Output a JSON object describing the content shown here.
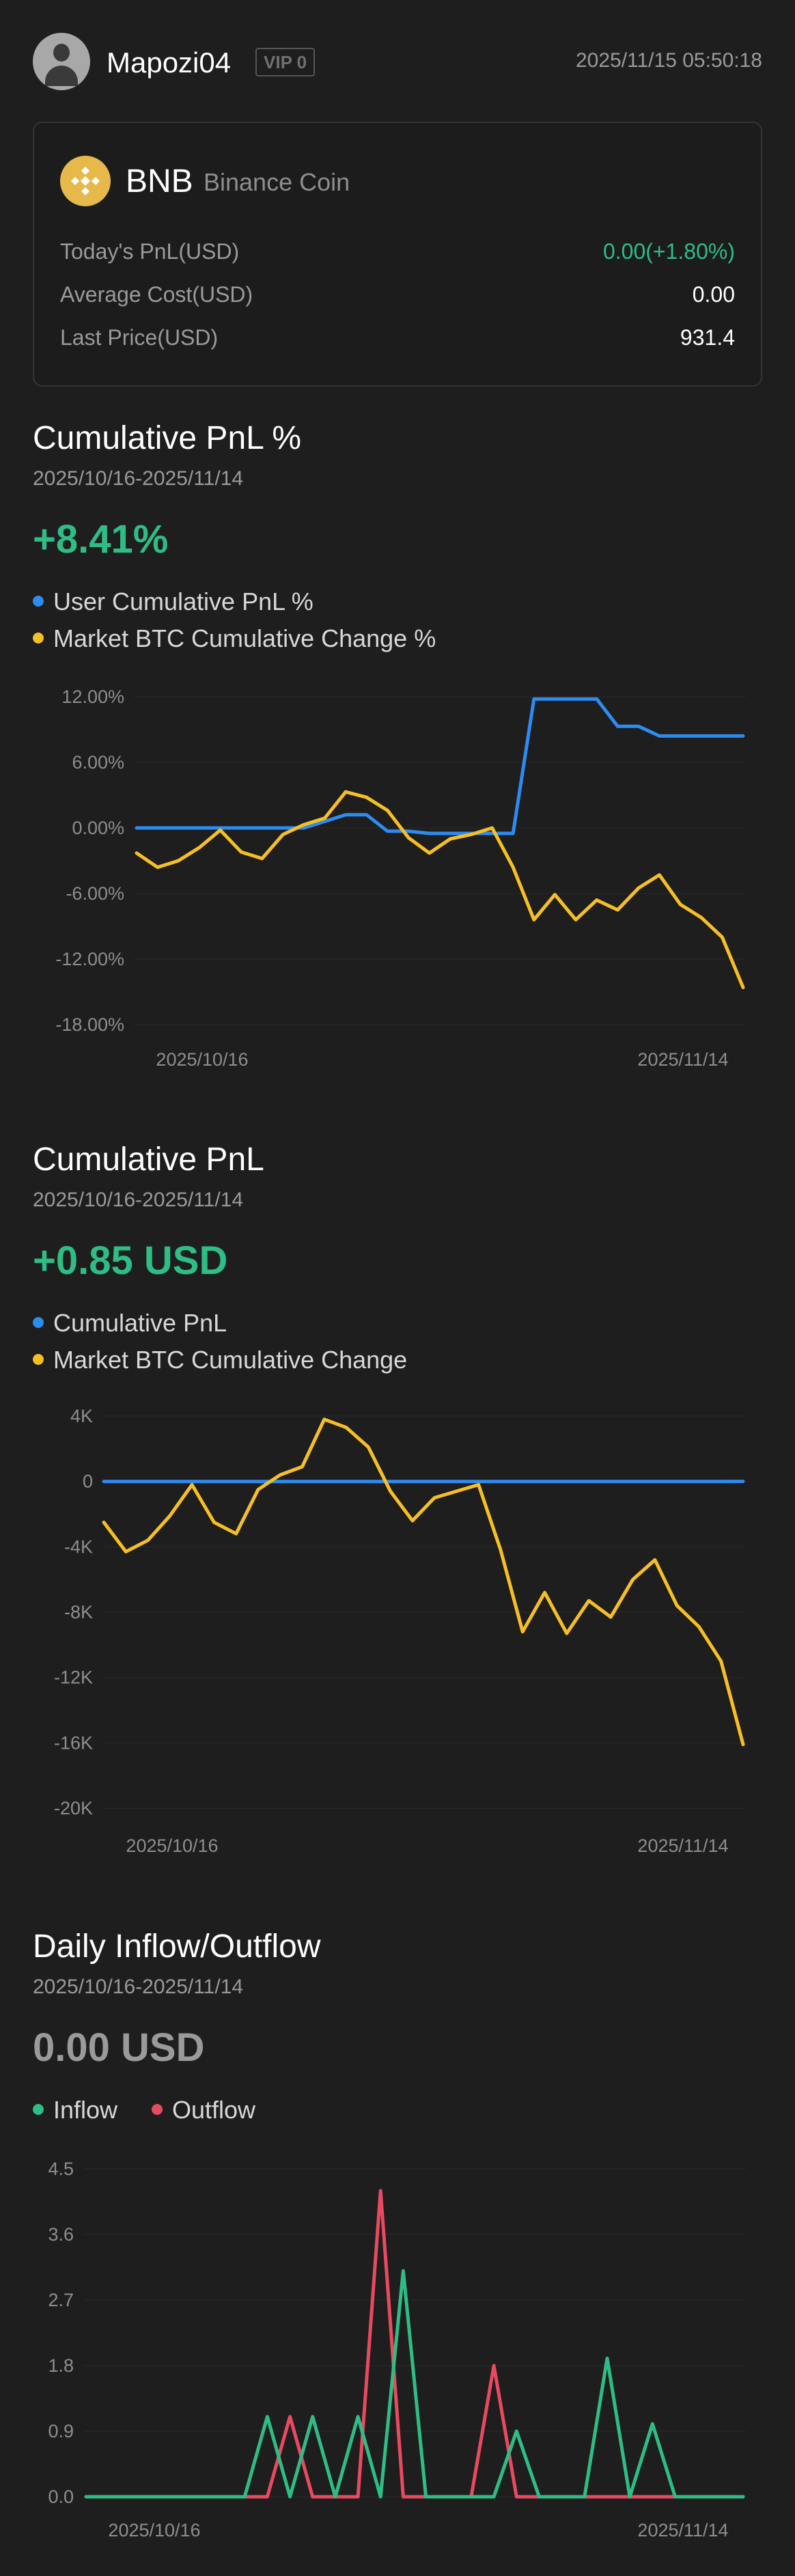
{
  "header": {
    "username": "Mapozi04",
    "vip_badge": "VIP 0",
    "timestamp": "2025/11/15 05:50:18",
    "avatar_icon": "user-avatar-icon"
  },
  "asset": {
    "symbol": "BNB",
    "name": "Binance Coin",
    "icon": "bnb-coin-icon",
    "rows": [
      {
        "label": "Today's PnL(USD)",
        "value": "0.00(+1.80%)"
      },
      {
        "label": "Average Cost(USD)",
        "value": "0.00"
      },
      {
        "label": "Last Price(USD)",
        "value": "931.4"
      }
    ]
  },
  "colors": {
    "positive": "#2ebd85",
    "negative": "#e84a5f",
    "user_series": "#2d8cf0",
    "market_series": "#f6bf26",
    "muted": "#9a9a9a"
  },
  "pnl_pct": {
    "title": "Cumulative PnL %",
    "range": "2025/10/16-2025/11/14",
    "value": "+8.41%",
    "legend": [
      "User Cumulative PnL %",
      "Market BTC Cumulative Change %"
    ]
  },
  "pnl_abs": {
    "title": "Cumulative PnL",
    "range": "2025/10/16-2025/11/14",
    "value": "+0.85 USD",
    "legend": [
      "Cumulative PnL",
      "Market BTC Cumulative Change"
    ]
  },
  "flow": {
    "title": "Daily Inflow/Outflow",
    "range": "2025/10/16-2025/11/14",
    "value": "0.00 USD",
    "legend": [
      "Inflow",
      "Outflow"
    ]
  },
  "chart_data": [
    {
      "type": "line",
      "x": [
        "2025/10/16",
        "2025/10/17",
        "2025/10/18",
        "2025/10/19",
        "2025/10/20",
        "2025/10/21",
        "2025/10/22",
        "2025/10/23",
        "2025/10/24",
        "2025/10/25",
        "2025/10/26",
        "2025/10/27",
        "2025/10/28",
        "2025/10/29",
        "2025/10/30",
        "2025/10/31",
        "2025/11/01",
        "2025/11/02",
        "2025/11/03",
        "2025/11/04",
        "2025/11/05",
        "2025/11/06",
        "2025/11/07",
        "2025/11/08",
        "2025/11/09",
        "2025/11/10",
        "2025/11/11",
        "2025/11/12",
        "2025/11/13",
        "2025/11/14"
      ],
      "x_tick_labels": [
        "2025/10/16",
        "2025/11/14"
      ],
      "ylim": [
        -18,
        12
      ],
      "y_tick_labels": [
        "12.00%",
        "6.00%",
        "0.00%",
        "-6.00%",
        "-12.00%",
        "-18.00%"
      ],
      "grid": true,
      "series": [
        {
          "name": "User Cumulative PnL %",
          "color": "#2d8cf0",
          "values": [
            0,
            0,
            0,
            0,
            0,
            0,
            0,
            0,
            0,
            0.6,
            1.2,
            1.2,
            -0.3,
            -0.3,
            -0.5,
            -0.5,
            -0.5,
            -0.5,
            -0.5,
            11.8,
            11.8,
            11.8,
            11.8,
            9.3,
            9.3,
            8.41,
            8.41,
            8.41,
            8.41,
            8.41
          ]
        },
        {
          "name": "Market BTC Cumulative Change %",
          "color": "#f6bf26",
          "values": [
            -2.3,
            -3.6,
            -3.0,
            -1.8,
            -0.2,
            -2.2,
            -2.8,
            -0.6,
            0.3,
            0.9,
            3.3,
            2.8,
            1.6,
            -0.9,
            -2.3,
            -1.0,
            -0.6,
            0.0,
            -3.6,
            -8.4,
            -6.1,
            -8.4,
            -6.6,
            -7.5,
            -5.5,
            -4.3,
            -7.0,
            -8.2,
            -10.0,
            -14.6
          ]
        }
      ]
    },
    {
      "type": "line",
      "x": [
        "2025/10/16",
        "2025/10/17",
        "2025/10/18",
        "2025/10/19",
        "2025/10/20",
        "2025/10/21",
        "2025/10/22",
        "2025/10/23",
        "2025/10/24",
        "2025/10/25",
        "2025/10/26",
        "2025/10/27",
        "2025/10/28",
        "2025/10/29",
        "2025/10/30",
        "2025/10/31",
        "2025/11/01",
        "2025/11/02",
        "2025/11/03",
        "2025/11/04",
        "2025/11/05",
        "2025/11/06",
        "2025/11/07",
        "2025/11/08",
        "2025/11/09",
        "2025/11/10",
        "2025/11/11",
        "2025/11/12",
        "2025/11/13",
        "2025/11/14"
      ],
      "x_tick_labels": [
        "2025/10/16",
        "2025/11/14"
      ],
      "ylim": [
        -20000,
        4000
      ],
      "y_tick_labels": [
        "4K",
        "0",
        "-4K",
        "-8K",
        "-12K",
        "-16K",
        "-20K"
      ],
      "grid": true,
      "series": [
        {
          "name": "Cumulative PnL",
          "color": "#2d8cf0",
          "values": [
            0,
            0,
            0,
            0,
            0,
            0,
            0,
            0,
            0,
            0,
            0,
            0,
            0,
            0,
            0,
            0,
            0,
            0,
            0,
            0,
            0,
            0,
            0,
            0,
            0,
            0,
            0,
            0,
            0,
            0.85
          ]
        },
        {
          "name": "Market BTC Cumulative Change",
          "color": "#f6bf26",
          "values": [
            -2500,
            -4300,
            -3600,
            -2100,
            -200,
            -2500,
            -3200,
            -500,
            400,
            900,
            3800,
            3300,
            2100,
            -600,
            -2400,
            -1000,
            -600,
            -200,
            -4200,
            -9200,
            -6800,
            -9300,
            -7300,
            -8300,
            -6000,
            -4800,
            -7600,
            -8900,
            -11000,
            -16100
          ]
        }
      ]
    },
    {
      "type": "line",
      "x": [
        "2025/10/16",
        "2025/10/17",
        "2025/10/18",
        "2025/10/19",
        "2025/10/20",
        "2025/10/21",
        "2025/10/22",
        "2025/10/23",
        "2025/10/24",
        "2025/10/25",
        "2025/10/26",
        "2025/10/27",
        "2025/10/28",
        "2025/10/29",
        "2025/10/30",
        "2025/10/31",
        "2025/11/01",
        "2025/11/02",
        "2025/11/03",
        "2025/11/04",
        "2025/11/05",
        "2025/11/06",
        "2025/11/07",
        "2025/11/08",
        "2025/11/09",
        "2025/11/10",
        "2025/11/11",
        "2025/11/12",
        "2025/11/13",
        "2025/11/14"
      ],
      "x_tick_labels": [
        "2025/10/16",
        "2025/11/14"
      ],
      "ylim": [
        0,
        4.5
      ],
      "y_tick_labels": [
        "4.5",
        "3.6",
        "2.7",
        "1.8",
        "0.9",
        "0.0"
      ],
      "grid": true,
      "series": [
        {
          "name": "Outflow",
          "color": "#e84a5f",
          "values": [
            0,
            0,
            0,
            0,
            0,
            0,
            0,
            0,
            0,
            1.1,
            0,
            0,
            0,
            4.2,
            0,
            0,
            0,
            0,
            1.8,
            0,
            0,
            0,
            0,
            0,
            0,
            0,
            0,
            0,
            0,
            0
          ]
        },
        {
          "name": "Inflow",
          "color": "#2ebd85",
          "values": [
            0,
            0,
            0,
            0,
            0,
            0,
            0,
            0,
            1.1,
            0,
            1.1,
            0,
            1.1,
            0,
            3.1,
            0,
            0,
            0,
            0,
            0.9,
            0,
            0,
            0,
            1.9,
            0,
            1.0,
            0,
            0,
            0,
            0
          ]
        }
      ]
    }
  ]
}
